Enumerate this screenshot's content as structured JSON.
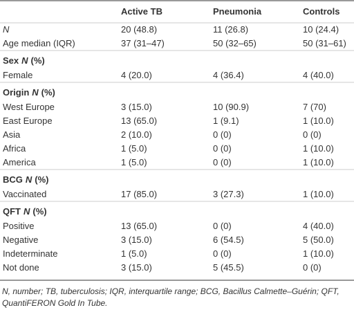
{
  "table": {
    "columns": [
      "Active TB",
      "Pneumonia",
      "Controls"
    ],
    "rows": [
      {
        "label": "N",
        "italic": true,
        "cells": [
          "20 (48.8)",
          "11 (26.8)",
          "10 (24.4)"
        ]
      },
      {
        "label": "Age median (IQR)",
        "cells": [
          "37 (31–47)",
          "50 (32–65)",
          "50 (31–61)"
        ]
      },
      {
        "section": "Sex",
        "unit_var": "N",
        "unit": "(%)"
      },
      {
        "label": "Female",
        "cells": [
          "4 (20.0)",
          "4 (36.4)",
          "4 (40.0)"
        ]
      },
      {
        "section": "Origin",
        "unit_var": "N",
        "unit": "(%)"
      },
      {
        "label": "West Europe",
        "cells": [
          "3 (15.0)",
          "10 (90.9)",
          "7 (70)"
        ]
      },
      {
        "label": "East Europe",
        "cells": [
          "13 (65.0)",
          "1 (9.1)",
          "1 (10.0)"
        ]
      },
      {
        "label": "Asia",
        "cells": [
          "2 (10.0)",
          "0 (0)",
          "0 (0)"
        ]
      },
      {
        "label": "Africa",
        "cells": [
          "1 (5.0)",
          "0 (0)",
          "1 (10.0)"
        ]
      },
      {
        "label": "America",
        "cells": [
          "1 (5.0)",
          "0 (0)",
          "1 (10.0)"
        ]
      },
      {
        "section": "BCG",
        "unit_var": "N",
        "unit": "(%)"
      },
      {
        "label": "Vaccinated",
        "cells": [
          "17 (85.0)",
          "3 (27.3)",
          "1 (10.0)"
        ]
      },
      {
        "section": "QFT",
        "unit_var": "N",
        "unit": "(%)"
      },
      {
        "label": "Positive",
        "cells": [
          "13 (65.0)",
          "0 (0)",
          "4 (40.0)"
        ]
      },
      {
        "label": "Negative",
        "cells": [
          "3 (15.0)",
          "6 (54.5)",
          "5 (50.0)"
        ]
      },
      {
        "label": "Indeterminate",
        "cells": [
          "1 (5.0)",
          "0 (0)",
          "1 (10.0)"
        ]
      },
      {
        "label": "Not done",
        "cells": [
          "3 (15.0)",
          "5 (45.5)",
          "0 (0)"
        ]
      }
    ]
  },
  "footnote": "N, number; TB, tuberculosis; IQR, interquartile range; BCG, Bacillus Calmette–Guérin; QFT, QuantiFERON Gold In Tube."
}
